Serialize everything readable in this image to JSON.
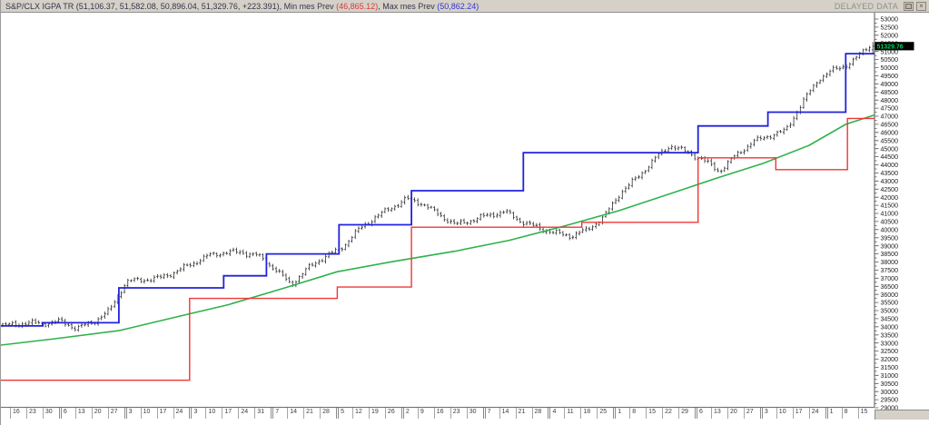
{
  "title_bar": {
    "title_main": "S&P/CLX IGPA TR (51,106.37, 51,582.08, 50,896.04, 51,329.76, +223.391), Min mes Prev ",
    "min_value": "(46,865.12)",
    "title_mid": ", Max mes Prev ",
    "max_value": "(50,862.24)",
    "status": "DELAYED DATA",
    "close_glyph": "×"
  },
  "chart_data": {
    "type": "ohlc",
    "title": "S&P/CLX IGPA TR daily bars with previous-month min/max step lines and moving average",
    "last_bar": {
      "open": 51106.37,
      "high": 51582.08,
      "low": 50896.04,
      "close": 51329.76,
      "change": "+223.391"
    },
    "min_mes_prev": 46865.12,
    "max_mes_prev": 50862.24,
    "y_axis": {
      "min": 29000,
      "max": 53000,
      "tick": 500,
      "minor_tick": 250,
      "last_price_label": "51329.76"
    },
    "x_axis": {
      "week_labels": [
        "16",
        "23",
        "30",
        "6",
        "13",
        "20",
        "27",
        "3",
        "10",
        "17",
        "24",
        "3",
        "10",
        "17",
        "24",
        "31",
        "7",
        "14",
        "21",
        "28",
        "5",
        "12",
        "19",
        "26",
        "2",
        "9",
        "16",
        "23",
        "30",
        "7",
        "14",
        "21",
        "28",
        "4",
        "11",
        "18",
        "25",
        "1",
        "8",
        "15",
        "22",
        "29",
        "6",
        "13",
        "20",
        "27",
        "3",
        "10",
        "17",
        "24",
        "1",
        "8",
        "15"
      ],
      "month_start_indices": [
        3,
        7,
        11,
        16,
        20,
        24,
        29,
        33,
        37,
        42,
        46,
        50
      ]
    },
    "weekly_closes": [
      34100,
      34250,
      34200,
      34350,
      33900,
      34300,
      35000,
      36800,
      36900,
      37000,
      37400,
      37900,
      38400,
      38600,
      38600,
      38400,
      37600,
      36600,
      37600,
      38300,
      38800,
      39900,
      40700,
      41300,
      41900,
      41600,
      40900,
      40300,
      40600,
      40900,
      41100,
      40500,
      40100,
      39800,
      39600,
      40000,
      40800,
      42300,
      43200,
      44300,
      45200,
      44800,
      44300,
      43600,
      44600,
      45400,
      45800,
      46100,
      47800,
      49300,
      49900,
      50300,
      51329.76
    ],
    "series": [
      {
        "name": "max-mes-prev",
        "type": "step",
        "color": "#2222dd",
        "width": 1.8,
        "segments": [
          [
            0,
            0.048,
            34050
          ],
          [
            0.048,
            0.135,
            34250
          ],
          [
            0.135,
            0.255,
            36400
          ],
          [
            0.255,
            0.304,
            37150
          ],
          [
            0.304,
            0.387,
            38500
          ],
          [
            0.387,
            0.47,
            40300
          ],
          [
            0.47,
            0.598,
            42400
          ],
          [
            0.598,
            0.798,
            44750
          ],
          [
            0.798,
            0.878,
            46400
          ],
          [
            0.878,
            0.967,
            47250
          ],
          [
            0.967,
            1,
            50862.24
          ]
        ]
      },
      {
        "name": "min-mes-prev",
        "type": "step",
        "color": "#f03636",
        "width": 1.4,
        "segments": [
          [
            0,
            0.216,
            30700
          ],
          [
            0.216,
            0.385,
            35750
          ],
          [
            0.385,
            0.47,
            36450
          ],
          [
            0.47,
            0.665,
            40150
          ],
          [
            0.665,
            0.798,
            40450
          ],
          [
            0.798,
            0.887,
            44430
          ],
          [
            0.887,
            0.969,
            43700
          ],
          [
            0.969,
            1,
            46865.12
          ]
        ]
      },
      {
        "name": "moving-average",
        "type": "line",
        "color": "#2eb24a",
        "width": 1.6,
        "points": [
          [
            0,
            32870
          ],
          [
            0.062,
            33260
          ],
          [
            0.135,
            33760
          ],
          [
            0.208,
            34700
          ],
          [
            0.26,
            35360
          ],
          [
            0.322,
            36350
          ],
          [
            0.385,
            37400
          ],
          [
            0.447,
            38010
          ],
          [
            0.52,
            38670
          ],
          [
            0.582,
            39340
          ],
          [
            0.645,
            40220
          ],
          [
            0.707,
            41160
          ],
          [
            0.769,
            42270
          ],
          [
            0.821,
            43210
          ],
          [
            0.873,
            44100
          ],
          [
            0.925,
            45200
          ],
          [
            0.967,
            46500
          ],
          [
            1,
            47080
          ]
        ]
      }
    ],
    "style": {
      "candle_color": "#2e2e2e",
      "axis_color": "#555555",
      "label_color": "#1a1a1a",
      "badge_bg": "#000000",
      "badge_text": "#00d455"
    }
  }
}
